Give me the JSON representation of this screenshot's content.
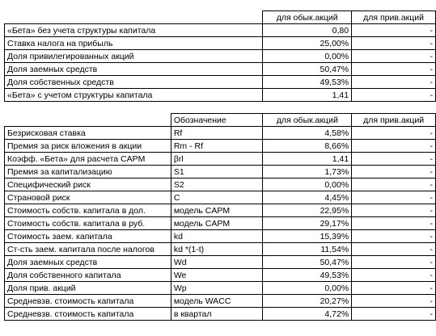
{
  "table1": {
    "headers": [
      "",
      "для обык.акций",
      "для прив.акций"
    ],
    "rows": [
      {
        "label": "«Бета» без учета структуры капитала",
        "common": "0,80",
        "preferred": "-"
      },
      {
        "label": "Ставка налога на прибыль",
        "common": "25,00%",
        "preferred": "-"
      },
      {
        "label": "Доля привилегированных акций",
        "common": "0,00%",
        "preferred": "-"
      },
      {
        "label": "Доля заемных средств",
        "common": "50,47%",
        "preferred": "-"
      },
      {
        "label": "Доля собственных средств",
        "common": "49,53%",
        "preferred": "-"
      },
      {
        "label": "«Бета» с учетом структуры капитала",
        "common": "1,41",
        "preferred": "-"
      }
    ]
  },
  "table2": {
    "headers": [
      "",
      "Обозначение",
      "для обык.акций",
      "для прив.акций"
    ],
    "rows": [
      {
        "label": "Безрисковая ставка",
        "symbol": "Rf",
        "common": "4,58%",
        "preferred": "-"
      },
      {
        "label": "Премия за риск вложения в акции",
        "symbol": "Rm - Rf",
        "common": "8,66%",
        "preferred": "-"
      },
      {
        "label": "Коэфф. «Бета» для расчета CAPM",
        "symbol": "βrl",
        "common": "1,41",
        "preferred": "-"
      },
      {
        "label": "Премия за капитализацию",
        "symbol": "S1",
        "common": "1,73%",
        "preferred": "-"
      },
      {
        "label": "Специфический риск",
        "symbol": "S2",
        "common": "0,00%",
        "preferred": "-"
      },
      {
        "label": "Страновой риск",
        "symbol": "C",
        "common": "4,45%",
        "preferred": "-"
      },
      {
        "label": "Стоимость собств. капитала в дол.",
        "symbol": "модель CAPM",
        "common": "22,95%",
        "preferred": "-"
      },
      {
        "label": "Стоимость собств. капитала в руб.",
        "symbol": "модель CAPM",
        "common": "29,17%",
        "preferred": "-"
      },
      {
        "label": "Стоимость заем. капитала",
        "symbol": "kd",
        "common": "15,39%",
        "preferred": "-"
      },
      {
        "label": "Ст-сть заем. капитала после налогов",
        "symbol": "kd *(1-t)",
        "common": "11,54%",
        "preferred": "-"
      },
      {
        "label": "Доля заемных средств",
        "symbol": "Wd",
        "common": "50,47%",
        "preferred": "-"
      },
      {
        "label": "Доля собственного капитала",
        "symbol": "We",
        "common": "49,53%",
        "preferred": "-"
      },
      {
        "label": "Доля прив. акций",
        "symbol": "Wp",
        "common": "0,00%",
        "preferred": "-"
      },
      {
        "label": "Средневзв. стоимость капитала",
        "symbol": "модель WACC",
        "common": "20,27%",
        "preferred": "-"
      },
      {
        "label": "Средневзв. стоимость капитала",
        "symbol": "в квартал",
        "common": "4,72%",
        "preferred": "-"
      }
    ]
  }
}
